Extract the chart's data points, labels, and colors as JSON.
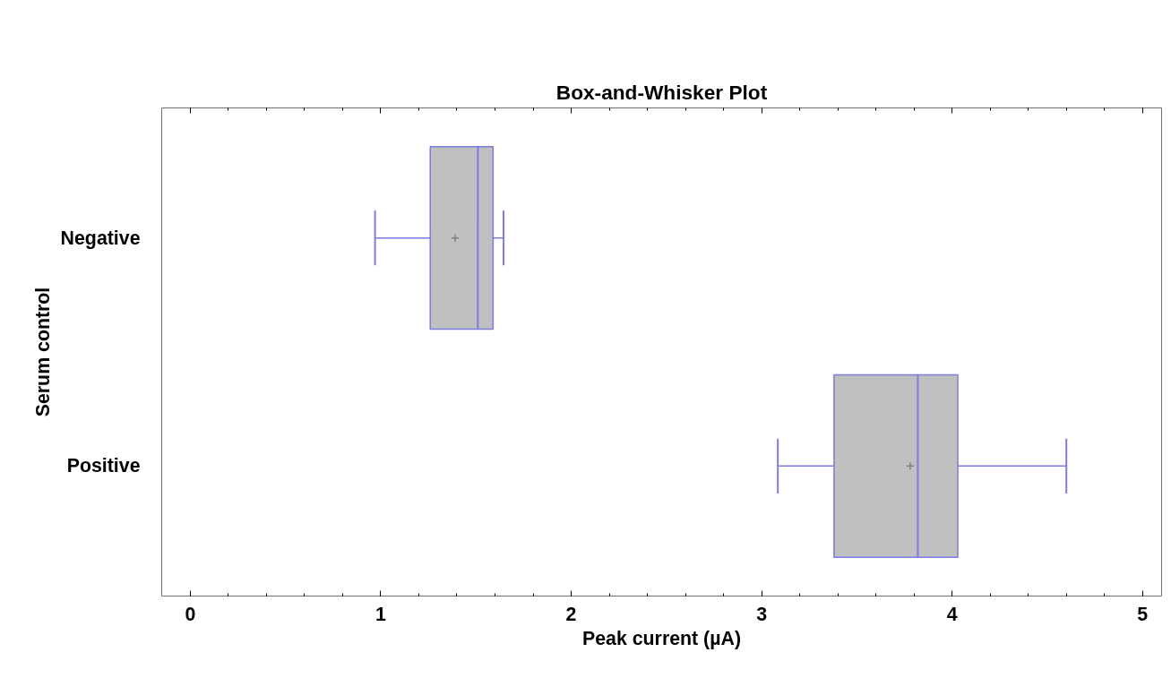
{
  "chart_data": {
    "type": "box",
    "title": "Box-and-Whisker Plot",
    "xlabel": "Peak current (µA)",
    "ylabel": "Serum control",
    "orientation": "horizontal",
    "categories": [
      "Negative",
      "Positive"
    ],
    "boxes": [
      {
        "low": 0.97,
        "q1": 1.26,
        "median": 1.51,
        "q3": 1.59,
        "high": 1.645,
        "mean": 1.39
      },
      {
        "low": 3.085,
        "q1": 3.38,
        "median": 3.82,
        "q3": 4.03,
        "high": 4.6,
        "mean": 3.78
      }
    ],
    "color": "#c0c0c0",
    "xlim": [
      -0.15,
      5.1
    ],
    "xticks": [
      0,
      1,
      2,
      3,
      4,
      5
    ],
    "grid": false
  }
}
